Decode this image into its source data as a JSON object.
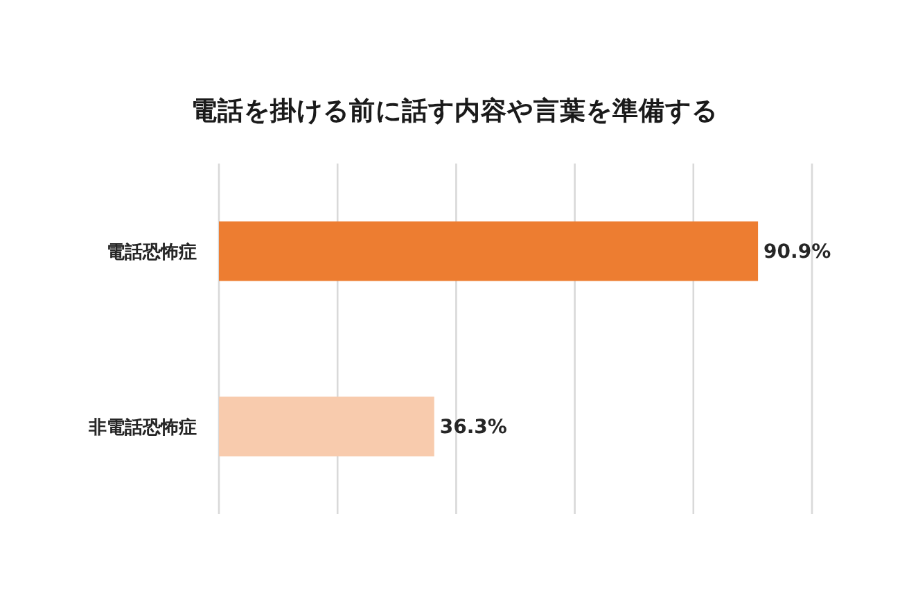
{
  "chart_data": {
    "type": "bar",
    "orientation": "horizontal",
    "title": "電話を掛ける前に話す内容や言葉を準備する",
    "categories": [
      "電話恐怖症",
      "非電話恐怖症"
    ],
    "values": [
      90.9,
      36.3
    ],
    "colors": [
      "#ed7d31",
      "#f8cbad"
    ],
    "value_labels": [
      "90.9%",
      "36.3%"
    ],
    "xlim": [
      0,
      100
    ],
    "xticks": [
      {
        "value": 0,
        "label": null
      },
      {
        "value": 20,
        "label": null
      },
      {
        "value": 40,
        "label": null
      },
      {
        "value": 60,
        "label": null
      },
      {
        "value": 80,
        "label": null
      },
      {
        "value": 100,
        "label": null
      }
    ],
    "grid": "x",
    "tick_labels": "y"
  }
}
